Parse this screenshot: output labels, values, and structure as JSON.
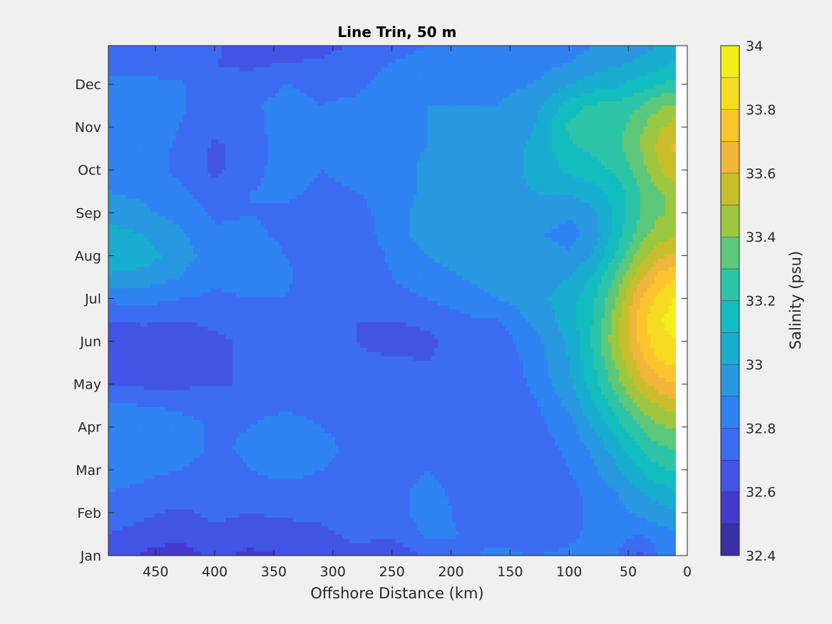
{
  "chart_data": {
    "type": "heatmap",
    "subtype": "filled-contour",
    "title": "Line Trin, 50 m",
    "xlabel": "Offshore Distance (km)",
    "ylabel": "",
    "xlim": [
      490,
      0
    ],
    "x_reversed": true,
    "x_ticks": [
      450,
      400,
      350,
      300,
      250,
      200,
      150,
      100,
      50,
      0
    ],
    "y_ticks": [
      "Jan",
      "Feb",
      "Mar",
      "Apr",
      "May",
      "Jun",
      "Jul",
      "Aug",
      "Sep",
      "Oct",
      "Nov",
      "Dec"
    ],
    "y_tick_months": [
      0,
      1,
      2,
      3,
      4,
      5,
      6,
      7,
      8,
      9,
      10,
      11
    ],
    "ylim_months": [
      0,
      11.9
    ],
    "data_x_range_km": [
      490,
      10
    ],
    "colorbar": {
      "label": "Salinity (psu)",
      "range": [
        32.4,
        34.0
      ],
      "levels": [
        32.4,
        32.5,
        32.6,
        32.7,
        32.8,
        32.9,
        33.0,
        33.1,
        33.2,
        33.3,
        33.4,
        33.5,
        33.6,
        33.7,
        33.8,
        33.9,
        34.0
      ],
      "tick_values": [
        32.4,
        32.6,
        32.8,
        33.0,
        33.2,
        33.4,
        33.6,
        33.8,
        34.0
      ],
      "tick_labels": [
        "32.4",
        "32.6",
        "32.8",
        "33",
        "33.2",
        "33.4",
        "33.6",
        "33.8",
        "34"
      ],
      "colors": [
        "#3b2fa6",
        "#4538cc",
        "#4254e6",
        "#3c6cf2",
        "#2f83f2",
        "#2898e0",
        "#19adcf",
        "#12bcbf",
        "#2cc4a6",
        "#5dc77a",
        "#9dc641",
        "#c8be2c",
        "#f0b53a",
        "#fcc52e",
        "#f5dc23",
        "#f2ee1b"
      ]
    },
    "salinity_field": {
      "x_km": [
        490,
        460,
        430,
        400,
        370,
        340,
        310,
        280,
        250,
        220,
        190,
        160,
        130,
        100,
        80,
        60,
        40,
        25,
        10
      ],
      "y_month": [
        0,
        0.5,
        1,
        1.5,
        2,
        2.5,
        3,
        3.5,
        4,
        4.5,
        5,
        5.5,
        6,
        6.5,
        7,
        7.5,
        8,
        8.5,
        9,
        9.5,
        10,
        10.5,
        11,
        11.5,
        11.9
      ],
      "values": [
        [
          32.67,
          32.58,
          32.55,
          32.62,
          32.58,
          32.6,
          32.62,
          32.68,
          32.62,
          32.72,
          32.78,
          32.82,
          32.8,
          32.82,
          32.84,
          32.8,
          32.66,
          32.8,
          32.85
        ],
        [
          32.7,
          32.66,
          32.62,
          32.68,
          32.64,
          32.65,
          32.68,
          32.72,
          32.72,
          32.82,
          32.8,
          32.78,
          32.72,
          32.78,
          32.82,
          32.84,
          32.8,
          32.86,
          32.88
        ],
        [
          32.75,
          32.72,
          32.68,
          32.72,
          32.7,
          32.72,
          32.72,
          32.75,
          32.75,
          32.85,
          32.78,
          32.72,
          32.7,
          32.76,
          32.82,
          32.86,
          32.92,
          32.95,
          32.98
        ],
        [
          32.8,
          32.78,
          32.75,
          32.72,
          32.74,
          32.75,
          32.75,
          32.76,
          32.78,
          32.82,
          32.78,
          32.72,
          32.7,
          32.76,
          32.84,
          32.9,
          33.0,
          33.05,
          33.1
        ],
        [
          32.85,
          32.82,
          32.8,
          32.76,
          32.8,
          32.85,
          32.8,
          32.78,
          32.78,
          32.8,
          32.76,
          32.72,
          32.74,
          32.8,
          32.88,
          32.98,
          33.1,
          33.18,
          33.22
        ],
        [
          32.9,
          32.88,
          32.85,
          32.78,
          32.82,
          32.88,
          32.82,
          32.78,
          32.8,
          32.78,
          32.75,
          32.72,
          32.74,
          32.82,
          32.92,
          33.05,
          33.2,
          33.28,
          33.3
        ],
        [
          32.88,
          32.9,
          32.85,
          32.78,
          32.8,
          32.86,
          32.8,
          32.78,
          32.8,
          32.76,
          32.74,
          32.72,
          32.76,
          32.86,
          33.0,
          33.15,
          33.3,
          33.38,
          33.42
        ],
        [
          32.82,
          32.8,
          32.78,
          32.76,
          32.76,
          32.78,
          32.76,
          32.76,
          32.78,
          32.76,
          32.74,
          32.72,
          32.78,
          32.92,
          33.08,
          33.25,
          33.42,
          33.5,
          33.55
        ],
        [
          32.7,
          32.68,
          32.68,
          32.7,
          32.7,
          32.74,
          32.74,
          32.74,
          32.78,
          32.76,
          32.74,
          32.72,
          32.82,
          32.98,
          33.15,
          33.35,
          33.55,
          33.65,
          33.7
        ],
        [
          32.64,
          32.62,
          32.65,
          32.68,
          32.72,
          32.74,
          32.74,
          32.72,
          32.72,
          32.7,
          32.72,
          32.72,
          32.84,
          33.0,
          33.18,
          33.42,
          33.65,
          33.78,
          33.82
        ],
        [
          32.62,
          32.62,
          32.64,
          32.68,
          32.72,
          32.74,
          32.72,
          32.7,
          32.66,
          32.68,
          32.75,
          32.75,
          32.86,
          33.02,
          33.22,
          33.48,
          33.72,
          33.86,
          33.9
        ],
        [
          32.7,
          32.72,
          32.7,
          32.72,
          32.76,
          32.78,
          32.72,
          32.7,
          32.7,
          32.72,
          32.78,
          32.8,
          32.92,
          33.05,
          33.2,
          33.45,
          33.75,
          33.88,
          33.95
        ],
        [
          32.82,
          32.84,
          32.8,
          32.78,
          32.8,
          32.8,
          32.72,
          32.7,
          32.76,
          32.8,
          32.85,
          32.9,
          32.96,
          33.05,
          33.18,
          33.4,
          33.7,
          33.82,
          33.92
        ],
        [
          32.98,
          32.96,
          32.9,
          32.82,
          32.84,
          32.82,
          32.74,
          32.72,
          32.8,
          32.86,
          32.9,
          32.95,
          32.96,
          33.0,
          33.12,
          33.32,
          33.58,
          33.72,
          33.8
        ],
        [
          33.1,
          33.05,
          32.95,
          32.85,
          32.86,
          32.8,
          32.72,
          32.72,
          32.82,
          32.9,
          32.95,
          32.98,
          32.94,
          32.92,
          33.0,
          33.22,
          33.45,
          33.58,
          33.62
        ],
        [
          33.05,
          33.0,
          32.92,
          32.82,
          32.82,
          32.78,
          32.72,
          32.74,
          32.85,
          32.95,
          33.0,
          32.98,
          32.92,
          32.86,
          32.94,
          33.15,
          33.35,
          33.45,
          33.48
        ],
        [
          32.95,
          32.92,
          32.86,
          32.78,
          32.8,
          32.78,
          32.74,
          32.76,
          32.85,
          32.95,
          33.0,
          32.96,
          32.96,
          32.92,
          32.98,
          33.12,
          33.3,
          33.38,
          33.42
        ],
        [
          32.9,
          32.88,
          32.82,
          32.74,
          32.8,
          32.82,
          32.78,
          32.8,
          32.85,
          32.92,
          32.96,
          32.96,
          33.0,
          33.02,
          33.06,
          33.15,
          33.3,
          33.38,
          33.45
        ],
        [
          32.86,
          32.84,
          32.78,
          32.68,
          32.76,
          32.86,
          32.8,
          32.82,
          32.86,
          32.92,
          32.95,
          32.96,
          33.02,
          33.12,
          33.16,
          33.22,
          33.35,
          33.48,
          33.58
        ],
        [
          32.84,
          32.86,
          32.78,
          32.68,
          32.74,
          32.85,
          32.8,
          32.82,
          32.88,
          32.9,
          32.92,
          32.94,
          33.02,
          33.18,
          33.22,
          33.26,
          33.4,
          33.52,
          33.62
        ],
        [
          32.85,
          32.9,
          32.8,
          32.72,
          32.76,
          32.86,
          32.8,
          32.82,
          32.9,
          32.9,
          32.9,
          32.92,
          33.0,
          33.22,
          33.28,
          33.26,
          33.38,
          33.48,
          33.55
        ],
        [
          32.82,
          32.86,
          32.82,
          32.74,
          32.78,
          32.84,
          32.8,
          32.82,
          32.88,
          32.9,
          32.9,
          32.9,
          32.96,
          33.15,
          33.22,
          33.22,
          33.3,
          33.38,
          33.42
        ],
        [
          32.82,
          32.84,
          32.82,
          32.72,
          32.74,
          32.8,
          32.78,
          32.78,
          32.84,
          32.88,
          32.88,
          32.88,
          32.9,
          33.0,
          33.05,
          33.08,
          33.15,
          33.2,
          33.25
        ],
        [
          32.76,
          32.74,
          32.72,
          32.7,
          32.68,
          32.7,
          32.72,
          32.76,
          32.8,
          32.84,
          32.86,
          32.86,
          32.86,
          32.9,
          32.95,
          32.98,
          33.02,
          33.06,
          33.1
        ],
        [
          32.74,
          32.72,
          32.7,
          32.72,
          32.62,
          32.6,
          32.66,
          32.72,
          32.76,
          32.8,
          32.84,
          32.84,
          32.84,
          32.86,
          32.9,
          32.92,
          32.96,
          33.0,
          33.02
        ]
      ]
    }
  }
}
